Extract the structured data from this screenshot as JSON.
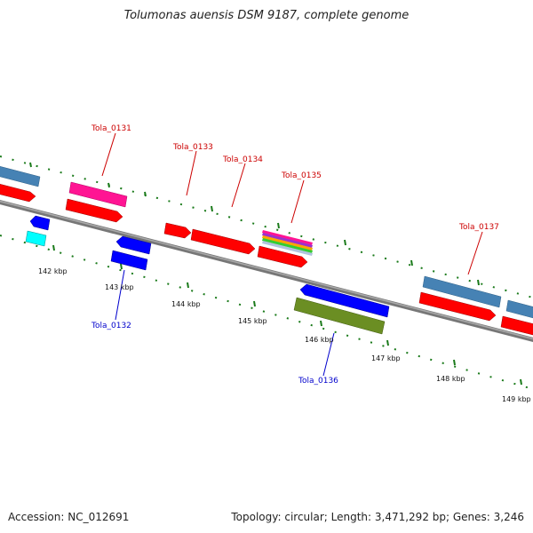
{
  "title": "Tolumonas auensis DSM 9187, complete genome",
  "footer": {
    "accession": "Accession: NC_012691",
    "summary": "Topology: circular; Length: 3,471,292 bp; Genes: 3,246"
  },
  "kbp_labels": [
    "142 kbp",
    "143 kbp",
    "144 kbp",
    "145 kbp",
    "146 kbp",
    "147 kbp",
    "148 kbp",
    "149 kbp"
  ],
  "gene_labels_top": [
    "Tola_0131",
    "Tola_0133",
    "Tola_0134",
    "Tola_0135",
    "Tola_0137"
  ],
  "gene_labels_bottom": [
    "Tola_0132",
    "Tola_0136"
  ],
  "colors": {
    "backbone": "#7a7a7a",
    "tick": "#1a7a1a",
    "red_gene": "#ff0000",
    "blue_gene": "#0000ff",
    "steel_gene": "#4682b4",
    "magenta_gene": "#ff1493",
    "cyan_gene": "#00ffff",
    "olive_gene": "#6b8e23",
    "top_label": "#cc0000",
    "bottom_label": "#0000cc"
  }
}
